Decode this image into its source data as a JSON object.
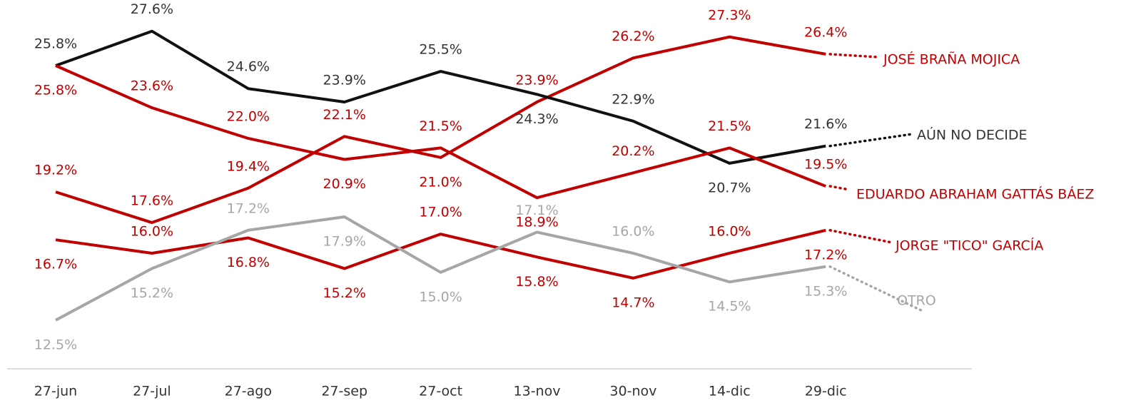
{
  "chart_data": {
    "type": "line",
    "categories": [
      "27-jun",
      "27-jul",
      "27-ago",
      "27-sep",
      "27-oct",
      "13-nov",
      "30-nov",
      "14-dic",
      "29-dic"
    ],
    "ylim": [
      10,
      30
    ],
    "series": [
      {
        "name": "JOSÉ BRAÑA MOJICA",
        "color": "#c00000",
        "values": [
          19.2,
          17.6,
          19.4,
          22.1,
          21.0,
          23.9,
          26.2,
          27.3,
          26.4
        ],
        "value_labels": [
          "19.2%",
          "17.6%",
          "19.4%",
          "22.1%",
          "21.0%",
          "23.9%",
          "26.2%",
          "27.3%",
          "26.4%"
        ]
      },
      {
        "name": "AÚN NO DECIDE",
        "color": "#111111",
        "values": [
          25.8,
          27.6,
          24.6,
          23.9,
          25.5,
          24.3,
          22.9,
          20.7,
          21.6
        ],
        "value_labels": [
          "25.8%",
          "27.6%",
          "24.6%",
          "23.9%",
          "25.5%",
          "24.3%",
          "22.9%",
          "20.7%",
          "21.6%"
        ]
      },
      {
        "name": "EDUARDO ABRAHAM GATTÁS BÁEZ",
        "color": "#c00000",
        "values": [
          25.8,
          23.6,
          22.0,
          20.9,
          21.5,
          18.9,
          20.2,
          21.5,
          19.5
        ],
        "value_labels": [
          "25.8%",
          "23.6%",
          "22.0%",
          "20.9%",
          "21.5%",
          "18.9%",
          "20.2%",
          "21.5%",
          "19.5%"
        ]
      },
      {
        "name": "JORGE \"TICO\" GARCÍA",
        "color": "#c00000",
        "values": [
          16.7,
          16.0,
          16.8,
          15.2,
          17.0,
          15.8,
          14.7,
          16.0,
          17.2
        ],
        "value_labels": [
          "16.7%",
          "16.0%",
          "16.8%",
          "15.2%",
          "17.0%",
          "15.8%",
          "14.7%",
          "16.0%",
          "17.2%"
        ]
      },
      {
        "name": "OTRO",
        "color": "#a6a6a6",
        "values": [
          12.5,
          15.2,
          17.2,
          17.9,
          15.0,
          17.1,
          16.0,
          14.5,
          15.3
        ],
        "value_labels": [
          "12.5%",
          "15.2%",
          "17.2%",
          "17.9%",
          "15.0%",
          "17.1%",
          "16.0%",
          "14.5%",
          "15.3%"
        ]
      }
    ]
  }
}
